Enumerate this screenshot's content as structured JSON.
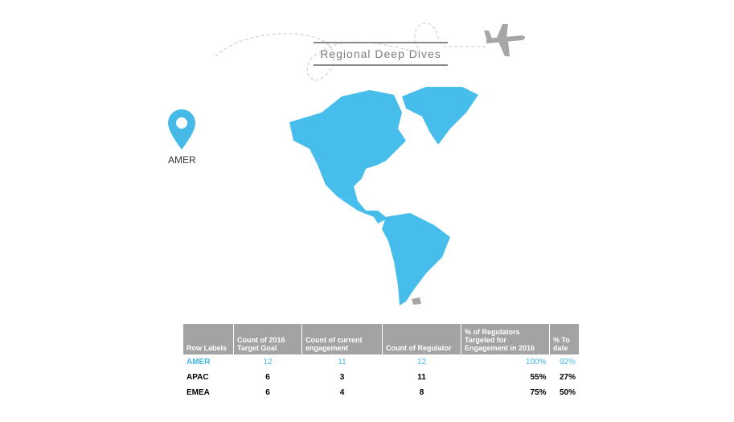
{
  "title": "Regional Deep Dives",
  "region": {
    "label": "AMER",
    "icon": "map-pin-icon",
    "color": "#45b9e8"
  },
  "decoration": {
    "icon": "airplane-icon",
    "color": "#a6a6a6"
  },
  "map": {
    "highlight_color": "#47bdeb",
    "other_color": "#a6a6a6"
  },
  "table": {
    "headers": [
      "Row Labels",
      "Count of 2016 Target Goal",
      "Count of current engagement",
      "Count of Regulator",
      "% of Regulators Targeted for Engagement in 2016",
      "% To date"
    ],
    "rows": [
      [
        "AMER",
        "12",
        "11",
        "12",
        "100%",
        "92%"
      ],
      [
        "APAC",
        "6",
        "3",
        "11",
        "55%",
        "27%"
      ],
      [
        "EMEA",
        "6",
        "4",
        "8",
        "75%",
        "50%"
      ]
    ]
  }
}
